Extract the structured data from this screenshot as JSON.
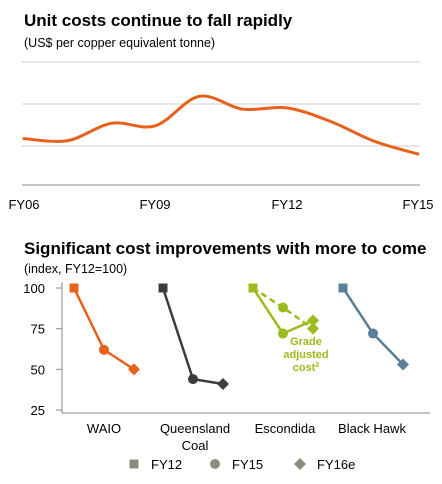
{
  "chart_data": [
    {
      "type": "line",
      "title": "Unit costs continue to fall rapidly",
      "subtitle": "(US$ per copper equivalent tonne)",
      "x_tick_labels": [
        "FY06",
        "FY09",
        "FY12",
        "FY15"
      ],
      "x": [
        2006,
        2007,
        2008,
        2009,
        2010,
        2011,
        2012,
        2013,
        2014,
        2015
      ],
      "series": [
        {
          "color": "#e8611c",
          "values": [
            0.24,
            0.21,
            0.48,
            0.44,
            0.9,
            0.7,
            0.72,
            0.51,
            0.2,
            0.0
          ]
        }
      ],
      "grid": true,
      "color": "#e8611c"
    },
    {
      "type": "line",
      "title": "Significant cost improvements with more to come",
      "subtitle": "(index, FY12=100)",
      "ylim": [
        25,
        100
      ],
      "y_ticks": [
        "100",
        "75",
        "50",
        "25"
      ],
      "categories": [
        "WAIO",
        "Queensland Coal",
        "Escondida",
        "Black Hawk"
      ],
      "category_lines": [
        [
          "WAIO"
        ],
        [
          "Queensland",
          "Coal"
        ],
        [
          "Escondida"
        ],
        [
          "Black Hawk"
        ]
      ],
      "legend": [
        "FY12",
        "FY15",
        "FY16e"
      ],
      "groups": [
        {
          "name": "WAIO",
          "color": "#e8611c",
          "values": [
            100,
            62,
            50
          ]
        },
        {
          "name": "Queensland Coal",
          "color": "#3d3d3d",
          "values": [
            100,
            44,
            41
          ]
        },
        {
          "name": "Escondida",
          "color": "#9bbb1e",
          "values": [
            100,
            72,
            80
          ],
          "adjusted_values": [
            100,
            88,
            75
          ]
        },
        {
          "name": "Black Hawk",
          "color": "#5b7f96",
          "values": [
            100,
            72,
            53
          ]
        }
      ],
      "annotation": {
        "lines": [
          "Grade",
          "adjusted",
          "cost"
        ],
        "superscript": "2"
      }
    }
  ],
  "colors": {
    "legend_marker": "#8c8c80",
    "grid": "#cfcfcf",
    "axis": "#8a8a8a"
  }
}
